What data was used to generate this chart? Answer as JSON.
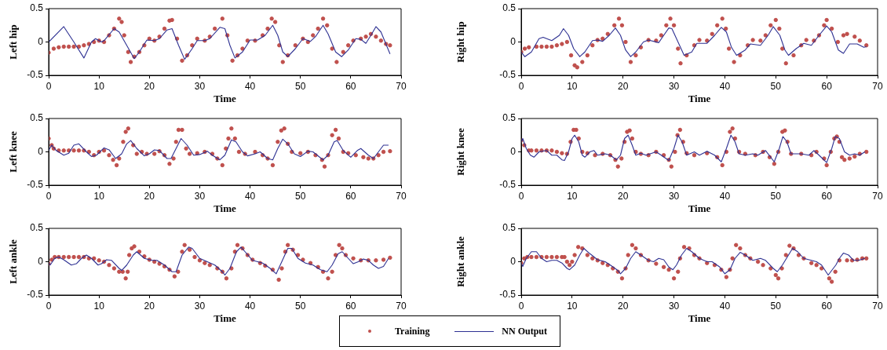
{
  "chart_data": [
    {
      "type": "line",
      "ylabel": "Left hip",
      "xlabel": "Time",
      "xlim": [
        0,
        70
      ],
      "xticks": [
        0,
        10,
        20,
        30,
        40,
        50,
        60,
        70
      ],
      "ylim": [
        -0.5,
        0.5
      ],
      "yticks": [
        -0.5,
        0,
        0.5
      ],
      "series": [
        {
          "type": "scatter",
          "marker": "circle",
          "color": "#c0504d",
          "x": [
            0,
            1,
            2,
            3,
            4,
            5,
            6,
            7,
            8,
            9,
            10,
            11,
            12,
            13,
            14,
            14.5,
            15,
            15.8,
            16.3,
            17,
            18,
            19,
            20,
            21,
            22,
            23,
            24,
            24.5,
            25.5,
            26.5,
            27.5,
            28.5,
            29.5,
            31,
            32,
            33,
            34.5,
            35.5,
            36.5,
            37.5,
            38.5,
            39.5,
            41,
            42.5,
            43.5,
            44.3,
            45,
            45.8,
            46.5,
            47.5,
            49,
            50.5,
            51.5,
            52.5,
            53.5,
            54.5,
            55.3,
            56.3,
            57.2,
            58.5,
            59.5,
            60.5,
            62,
            63,
            64,
            65,
            66,
            67,
            67.8
          ],
          "values": [
            -0.16,
            -0.1,
            -0.08,
            -0.07,
            -0.07,
            -0.07,
            -0.07,
            -0.05,
            -0.03,
            0,
            0.02,
            0,
            0.1,
            0.2,
            0.35,
            0.3,
            0.1,
            -0.15,
            -0.3,
            -0.22,
            -0.15,
            -0.05,
            0.05,
            0.02,
            0.08,
            0.2,
            0.32,
            0.33,
            0.05,
            -0.28,
            -0.2,
            -0.05,
            0.05,
            0.02,
            0.08,
            0.2,
            0.35,
            0.1,
            -0.28,
            -0.2,
            -0.1,
            0.02,
            0.02,
            0.1,
            0.2,
            0.35,
            0.3,
            -0.05,
            -0.3,
            -0.2,
            -0.05,
            0.05,
            0,
            0.1,
            0.2,
            0.35,
            0.25,
            -0.1,
            -0.3,
            -0.15,
            -0.05,
            0.02,
            0.05,
            0.08,
            0.12,
            0.08,
            0.02,
            -0.03,
            -0.05
          ]
        },
        {
          "type": "line",
          "color": "#2e3192",
          "x": [
            0,
            3,
            5,
            7,
            8.5,
            9.3,
            10.5,
            11,
            13,
            14,
            15.5,
            17,
            18,
            19.5,
            21,
            22,
            23.5,
            24.5,
            25.8,
            27,
            28.5,
            29.5,
            31,
            32,
            34,
            35,
            36,
            37,
            38.5,
            40,
            41.5,
            43,
            44.5,
            45.5,
            46.5,
            47.5,
            49,
            50.5,
            52,
            53,
            54.5,
            55.5,
            57,
            58.2,
            59.5,
            61,
            62,
            63,
            64,
            65,
            66,
            67.8
          ],
          "values": [
            0,
            0.23,
            0,
            -0.24,
            0,
            0.05,
            0,
            0.02,
            0.2,
            0.15,
            -0.05,
            -0.25,
            -0.15,
            0.03,
            0.02,
            0.05,
            0.18,
            0.2,
            -0.05,
            -0.26,
            -0.1,
            0.02,
            0.02,
            0.05,
            0.22,
            0.2,
            -0.05,
            -0.24,
            -0.15,
            0.03,
            0.03,
            0.1,
            0.25,
            0.1,
            -0.15,
            -0.22,
            -0.1,
            0.05,
            0.01,
            0.08,
            0.25,
            0.12,
            -0.15,
            -0.22,
            -0.12,
            0.05,
            0.04,
            -0.02,
            0.1,
            0.23,
            0.15,
            -0.18
          ]
        }
      ]
    },
    {
      "type": "line",
      "ylabel": "Right hip",
      "xlabel": "Time",
      "xlim": [
        0,
        70
      ],
      "xticks": [
        0,
        10,
        20,
        30,
        40,
        50,
        60,
        70
      ],
      "ylim": [
        -0.5,
        0.5
      ],
      "yticks": [
        -0.5,
        0,
        0.5
      ],
      "series": [
        {
          "type": "scatter",
          "marker": "circle",
          "color": "#c0504d",
          "x": [
            0,
            0.7,
            1.5,
            3,
            4,
            5,
            6,
            7,
            8,
            9,
            9.8,
            10.5,
            11,
            12,
            13,
            14,
            15,
            16,
            17,
            18.3,
            19.2,
            19.8,
            20.5,
            21.5,
            22.5,
            23.5,
            25,
            26.5,
            27.5,
            28.5,
            29.3,
            30,
            30.8,
            31.3,
            32.5,
            34,
            35,
            36.5,
            37.5,
            38.5,
            39.5,
            40.2,
            40.8,
            41.8,
            43,
            44.5,
            45.5,
            47,
            48,
            49,
            50,
            50.7,
            51.3,
            52,
            53.5,
            55,
            56,
            57.5,
            58.5,
            59.5,
            60,
            61,
            62.2,
            63.3,
            64,
            65.5,
            66.5,
            67.8
          ],
          "values": [
            -0.15,
            -0.1,
            -0.08,
            -0.07,
            -0.07,
            -0.07,
            -0.07,
            -0.05,
            -0.03,
            0,
            -0.2,
            -0.35,
            -0.38,
            -0.3,
            -0.2,
            -0.05,
            0.03,
            0.05,
            0.12,
            0.25,
            0.35,
            0.25,
            0,
            -0.3,
            -0.2,
            -0.08,
            0.03,
            0.02,
            0.1,
            0.25,
            0.35,
            0.25,
            -0.1,
            -0.32,
            -0.2,
            -0.05,
            0.03,
            0.02,
            0.12,
            0.25,
            0.35,
            0.2,
            -0.1,
            -0.3,
            -0.2,
            -0.05,
            0.03,
            0.02,
            0.1,
            0.25,
            0.33,
            0.2,
            -0.1,
            -0.32,
            -0.2,
            -0.05,
            0.03,
            0.02,
            0.1,
            0.25,
            0.33,
            0.2,
            0,
            0.1,
            0.12,
            0.08,
            0.02,
            -0.05
          ]
        },
        {
          "type": "line",
          "color": "#2e3192",
          "x": [
            0,
            0.7,
            2,
            3.5,
            4.3,
            6,
            7.5,
            8.3,
            9.3,
            10.3,
            11.5,
            12.5,
            14,
            15,
            16,
            17.3,
            18.5,
            19.5,
            20.5,
            21.5,
            22.5,
            24,
            25,
            27,
            28,
            29,
            29.6,
            30.8,
            32,
            33.5,
            34.5,
            36.5,
            38,
            39.3,
            40.3,
            41.3,
            42.3,
            44,
            45,
            47,
            48.5,
            49.5,
            50.8,
            51.8,
            52.5,
            54,
            55.5,
            57,
            58.5,
            60,
            61,
            62.3,
            63.3,
            64.5,
            66,
            67.3,
            67.8
          ],
          "values": [
            -0.15,
            -0.22,
            -0.15,
            0.05,
            0.07,
            0.02,
            0.1,
            0.2,
            0.1,
            -0.1,
            -0.22,
            -0.15,
            0.02,
            0.03,
            0.01,
            0.1,
            0.21,
            0.1,
            -0.12,
            -0.22,
            -0.15,
            0,
            0.03,
            -0.01,
            0.1,
            0.21,
            0.2,
            0,
            -0.2,
            -0.15,
            -0.02,
            -0.02,
            0.1,
            0.22,
            0.15,
            -0.08,
            -0.2,
            -0.12,
            -0.03,
            -0.05,
            0.1,
            0.23,
            0.1,
            -0.12,
            -0.2,
            -0.1,
            -0.02,
            -0.05,
            0.1,
            0.24,
            0.15,
            -0.12,
            -0.17,
            -0.03,
            -0.03,
            -0.08,
            -0.07
          ]
        }
      ]
    },
    {
      "type": "line",
      "ylabel": "Left knee",
      "xlabel": "Time",
      "xlim": [
        0,
        70
      ],
      "xticks": [
        0,
        10,
        20,
        30,
        40,
        50,
        60,
        70
      ],
      "ylim": [
        -0.5,
        0.5
      ],
      "yticks": [
        -0.5,
        0,
        0.5
      ],
      "series": [
        {
          "type": "scatter",
          "marker": "circle",
          "color": "#c0504d",
          "x": [
            0,
            0.6,
            1,
            2,
            3,
            4,
            5,
            6,
            7,
            8,
            9,
            10,
            11,
            12,
            12.8,
            13.5,
            14,
            14.8,
            15.3,
            15.8,
            16.8,
            17.5,
            18.5,
            19.5,
            21,
            22,
            23,
            24,
            24.8,
            25.3,
            25.8,
            26.5,
            27.3,
            28,
            29.5,
            31,
            32.5,
            33.5,
            34.5,
            35.2,
            35.7,
            36.3,
            37,
            37.8,
            39,
            41,
            42.5,
            43.5,
            44.5,
            45.5,
            46.2,
            46.8,
            47.5,
            48.3,
            50,
            51.5,
            53,
            54.3,
            54.8,
            55.5,
            56.3,
            57,
            57.6,
            58.5,
            59.5,
            61,
            62.5,
            63.5,
            64.5,
            65.5,
            66.5,
            67.8
          ],
          "values": [
            0.2,
            0.1,
            0.05,
            0.02,
            0.02,
            0.02,
            0.02,
            0.02,
            0.02,
            0,
            -0.05,
            0,
            0.02,
            -0.05,
            -0.12,
            -0.2,
            -0.1,
            0.15,
            0.3,
            0.35,
            0.1,
            -0.03,
            0,
            -0.03,
            -0.03,
            0.01,
            -0.05,
            -0.18,
            -0.1,
            0.15,
            0.33,
            0.33,
            0.05,
            -0.03,
            -0.02,
            0,
            -0.03,
            -0.1,
            -0.2,
            0.05,
            0.2,
            0.35,
            0.2,
            0,
            -0.03,
            0,
            -0.05,
            -0.1,
            -0.2,
            0.15,
            0.32,
            0.35,
            0.12,
            0,
            -0.02,
            0,
            -0.05,
            -0.12,
            -0.22,
            -0.05,
            0.25,
            0.33,
            0.2,
            0,
            -0.02,
            -0.05,
            -0.08,
            -0.1,
            -0.1,
            -0.05,
            0,
            0.01
          ]
        },
        {
          "type": "line",
          "color": "#2e3192",
          "x": [
            0,
            0.6,
            1.5,
            3,
            4,
            5,
            6,
            7.5,
            8.5,
            9.5,
            11,
            12,
            13.3,
            14.5,
            15.5,
            16.3,
            17.5,
            19,
            20,
            21,
            22,
            23.5,
            24.3,
            25.3,
            26.3,
            27.5,
            28.8,
            30,
            31.5,
            32.5,
            34,
            35,
            36.3,
            37.2,
            38.5,
            39.5,
            41,
            42,
            43.5,
            44.5,
            45.5,
            46.5,
            47.5,
            48.8,
            50,
            51.5,
            52.5,
            54.5,
            55.5,
            56.7,
            57.3,
            58.5,
            60,
            61.3,
            62,
            63.5,
            64.5,
            65.5,
            66.5,
            67.5
          ],
          "values": [
            0.02,
            0.1,
            0.02,
            -0.05,
            -0.02,
            0.1,
            0.12,
            0,
            -0.07,
            -0.05,
            0.06,
            0.03,
            -0.1,
            -0.03,
            0.12,
            0.17,
            0.05,
            -0.06,
            -0.03,
            0.03,
            0.02,
            -0.1,
            -0.1,
            0.05,
            0.2,
            0.1,
            -0.05,
            -0.04,
            0.01,
            -0.05,
            -0.12,
            -0.05,
            0.18,
            0.15,
            0,
            -0.06,
            -0.03,
            0,
            -0.1,
            -0.12,
            0.05,
            0.19,
            0.12,
            -0.03,
            -0.07,
            0.01,
            0,
            -0.12,
            -0.05,
            0.15,
            0.17,
            0.02,
            -0.08,
            0.02,
            0.05,
            -0.05,
            -0.1,
            0,
            0.1,
            0.1
          ]
        }
      ]
    },
    {
      "type": "line",
      "ylabel": "Right knee",
      "xlabel": "Time",
      "xlim": [
        0,
        70
      ],
      "xticks": [
        0,
        10,
        20,
        30,
        40,
        50,
        60,
        70
      ],
      "ylim": [
        -0.5,
        0.5
      ],
      "yticks": [
        -0.5,
        0,
        0.5
      ],
      "series": [
        {
          "type": "scatter",
          "marker": "circle",
          "color": "#c0504d",
          "x": [
            0,
            0.6,
            1.5,
            2,
            3,
            4,
            5,
            6,
            7,
            8,
            9,
            9.7,
            10.3,
            10.8,
            11.3,
            12,
            13,
            14.5,
            16,
            17.5,
            18.5,
            19,
            19.7,
            20.3,
            20.8,
            21.3,
            21.8,
            22.5,
            23.5,
            25,
            26.5,
            28,
            29,
            29.5,
            30.2,
            30.7,
            31.2,
            31.8,
            32.5,
            34,
            36.5,
            38.5,
            39.5,
            40.3,
            41,
            41.5,
            42,
            42.8,
            44,
            46,
            47.5,
            48.8,
            49.7,
            50.5,
            51.3,
            51.8,
            52.3,
            53,
            55,
            57,
            58,
            59.5,
            60,
            60.8,
            61.5,
            62,
            62.5,
            63,
            63.5,
            64.5,
            65.5,
            66.5,
            67.8
          ],
          "values": [
            0.17,
            0.1,
            0.02,
            0.02,
            0.02,
            0.02,
            0.02,
            0.02,
            0,
            -0.02,
            -0.03,
            0.15,
            0.33,
            0.33,
            0.2,
            0,
            -0.02,
            -0.05,
            -0.03,
            -0.05,
            -0.12,
            -0.22,
            -0.1,
            0.15,
            0.3,
            0.32,
            0.2,
            0,
            -0.03,
            -0.05,
            0,
            -0.05,
            -0.12,
            -0.22,
            0,
            0.25,
            0.33,
            0.15,
            -0.02,
            -0.05,
            -0.02,
            -0.08,
            -0.2,
            0,
            0.3,
            0.35,
            0.2,
            0,
            -0.03,
            -0.05,
            0,
            -0.08,
            -0.18,
            0,
            0.3,
            0.32,
            0.15,
            -0.03,
            -0.03,
            -0.05,
            0,
            -0.1,
            -0.2,
            0,
            0.2,
            0.23,
            0.15,
            -0.08,
            -0.12,
            -0.1,
            -0.07,
            -0.03,
            0
          ]
        },
        {
          "type": "line",
          "color": "#2e3192",
          "x": [
            0,
            0.3,
            1,
            1.8,
            2.5,
            3.5,
            5,
            6,
            7,
            8,
            8.5,
            9.3,
            10,
            10.5,
            11.3,
            12,
            12.5,
            13.5,
            14.3,
            15,
            16.5,
            17.5,
            18.7,
            19.5,
            20.3,
            21,
            21.8,
            22.5,
            23.5,
            24.5,
            26.5,
            27.5,
            29,
            30,
            30.8,
            31.6,
            32.5,
            34,
            35,
            36.5,
            38,
            39.3,
            40.3,
            41.2,
            42,
            42.8,
            44,
            45.5,
            46.5,
            48,
            49.7,
            50.7,
            51.4,
            52.2,
            53,
            55,
            56.5,
            57.5,
            58.5,
            60,
            61,
            61.7,
            62.5,
            63.5,
            64.5,
            65.5,
            66.5,
            67.5
          ],
          "values": [
            0.15,
            0.2,
            0.05,
            -0.05,
            -0.08,
            0,
            0.02,
            -0.05,
            -0.05,
            -0.12,
            -0.13,
            0,
            0.2,
            0.25,
            0.15,
            -0.05,
            -0.08,
            0,
            0.02,
            -0.05,
            -0.03,
            -0.05,
            -0.12,
            -0.05,
            0.2,
            0.25,
            0.1,
            -0.05,
            -0.02,
            -0.05,
            0,
            -0.05,
            -0.13,
            0.05,
            0.25,
            0.15,
            -0.05,
            0,
            -0.05,
            0.01,
            -0.05,
            -0.15,
            0.05,
            0.25,
            0.15,
            -0.03,
            -0.05,
            -0.03,
            -0.05,
            0.02,
            -0.15,
            0.05,
            0.23,
            0.15,
            -0.03,
            -0.03,
            -0.05,
            0.02,
            -0.05,
            -0.16,
            0.05,
            0.23,
            0.2,
            0,
            -0.05,
            -0.03,
            -0.05,
            0
          ]
        }
      ]
    },
    {
      "type": "line",
      "ylabel": "Left ankle",
      "xlabel": "Time",
      "xlim": [
        0,
        70
      ],
      "xticks": [
        0,
        10,
        20,
        30,
        40,
        50,
        60,
        70
      ],
      "ylim": [
        -0.5,
        0.5
      ],
      "yticks": [
        -0.5,
        0,
        0.5
      ],
      "legend": "bottom",
      "series": [
        {
          "name": "Training",
          "type": "scatter",
          "marker": "circle",
          "color": "#c0504d",
          "x": [
            0,
            0.6,
            1.2,
            2,
            3,
            4,
            5,
            6,
            7,
            8,
            9,
            10,
            11,
            12,
            13,
            14,
            14.7,
            15.3,
            15.7,
            16,
            16.5,
            17,
            18,
            19,
            20,
            21,
            22,
            23,
            24,
            25,
            25.7,
            26.5,
            27,
            28,
            29,
            30,
            31,
            32,
            33.5,
            34.5,
            35.3,
            36.3,
            37,
            37.5,
            38.5,
            39.5,
            40.5,
            42,
            43,
            44.5,
            45.7,
            46.3,
            47,
            47.5,
            48.5,
            49.5,
            50.5,
            52,
            53.5,
            54.5,
            55.5,
            56.3,
            57,
            57.7,
            58.3,
            59,
            60.5,
            62,
            63.5,
            65,
            66.5,
            67.8
          ],
          "values": [
            -0.03,
            0.03,
            0.07,
            0.07,
            0.07,
            0.07,
            0.07,
            0.07,
            0.07,
            0.05,
            0.05,
            0.02,
            0,
            -0.05,
            -0.1,
            -0.15,
            -0.15,
            -0.25,
            -0.15,
            0.1,
            0.2,
            0.23,
            0.15,
            0.08,
            0.03,
            0,
            -0.03,
            -0.07,
            -0.12,
            -0.22,
            -0.15,
            0.15,
            0.25,
            0.18,
            0.07,
            0.02,
            -0.02,
            -0.05,
            -0.1,
            -0.15,
            -0.25,
            -0.1,
            0.15,
            0.25,
            0.2,
            0.1,
            0.03,
            -0.02,
            -0.06,
            -0.12,
            -0.27,
            -0.1,
            0.15,
            0.25,
            0.18,
            0.1,
            0.03,
            -0.02,
            -0.08,
            -0.15,
            -0.25,
            -0.15,
            0.1,
            0.25,
            0.2,
            0.1,
            0.05,
            0.02,
            0.02,
            0.02,
            0.03,
            0.06
          ]
        },
        {
          "name": "NN Output",
          "type": "line",
          "color": "#2e3192",
          "x": [
            0,
            0.3,
            1.2,
            2,
            3,
            4.5,
            5.5,
            6.5,
            7.5,
            8.5,
            9.8,
            10.5,
            11.5,
            12.5,
            14,
            14.5,
            15.5,
            16.8,
            17.5,
            19,
            20.5,
            21.5,
            23,
            24.5,
            25.3,
            26.5,
            27.8,
            28.5,
            30,
            31.5,
            33,
            34.5,
            35,
            36,
            37.3,
            38.2,
            39,
            40.5,
            42.5,
            44,
            45.2,
            46.3,
            47.5,
            48.3,
            49.5,
            51,
            52.5,
            54,
            55.3,
            56.3,
            57.5,
            58.3,
            59.5,
            60.5,
            61.5,
            62.5,
            63.5,
            64.5,
            65.5,
            66.5,
            67.5
          ],
          "values": [
            -0.02,
            -0.05,
            0.05,
            0.07,
            0.03,
            -0.05,
            -0.03,
            0.05,
            0.1,
            0.05,
            -0.05,
            -0.03,
            0.03,
            0.02,
            -0.1,
            -0.13,
            -0.05,
            0.1,
            0.15,
            0.05,
            0.02,
            0.02,
            -0.05,
            -0.15,
            -0.15,
            0.1,
            0.22,
            0.2,
            0.05,
            0,
            -0.05,
            -0.15,
            -0.2,
            -0.1,
            0.15,
            0.22,
            0.15,
            0.02,
            -0.02,
            -0.1,
            -0.18,
            0,
            0.2,
            0.2,
            0.05,
            -0.02,
            -0.05,
            -0.12,
            -0.15,
            -0.05,
            0.12,
            0.15,
            0.05,
            -0.03,
            0,
            0.04,
            0.02,
            -0.05,
            -0.1,
            -0.07,
            0.05
          ]
        }
      ]
    },
    {
      "type": "line",
      "ylabel": "Right ankle",
      "xlabel": "Time",
      "xlim": [
        0,
        70
      ],
      "xticks": [
        0,
        10,
        20,
        30,
        40,
        50,
        60,
        70
      ],
      "ylim": [
        -0.5,
        0.5
      ],
      "yticks": [
        -0.5,
        0,
        0.5
      ],
      "series": [
        {
          "type": "scatter",
          "marker": "circle",
          "color": "#c0504d",
          "x": [
            0,
            0.6,
            1.2,
            2,
            3,
            4,
            5,
            6,
            7,
            8,
            8.5,
            9,
            9.5,
            10,
            10.5,
            11.2,
            12,
            13,
            14,
            15,
            16,
            17,
            18,
            19,
            19.8,
            20.5,
            21,
            21.8,
            22.5,
            23.5,
            25,
            26.5,
            28,
            29,
            30,
            30.8,
            31.2,
            32,
            33,
            34,
            35,
            36.5,
            38,
            39.3,
            40.3,
            41,
            41.5,
            42.2,
            43,
            44,
            45,
            46.5,
            47.5,
            49,
            50,
            50.5,
            51.2,
            52,
            52.7,
            53.5,
            54.5,
            55.5,
            57,
            58,
            59,
            60.5,
            61,
            61.7,
            62.5,
            64,
            65,
            66,
            67,
            67.8
          ],
          "values": [
            -0.02,
            0.05,
            0.07,
            0.07,
            0.07,
            0.07,
            0.07,
            0.07,
            0.07,
            0.07,
            0.07,
            0,
            -0.05,
            0,
            0.1,
            0.22,
            0.2,
            0.1,
            0.05,
            0.02,
            -0.02,
            -0.05,
            -0.1,
            -0.15,
            -0.25,
            -0.1,
            0.1,
            0.25,
            0.2,
            0.1,
            0.02,
            -0.03,
            -0.08,
            -0.12,
            -0.25,
            -0.15,
            0.05,
            0.22,
            0.2,
            0.1,
            0.05,
            -0.02,
            -0.05,
            -0.12,
            -0.23,
            -0.12,
            0.05,
            0.25,
            0.2,
            0.1,
            0.05,
            0,
            -0.05,
            -0.1,
            -0.2,
            -0.25,
            -0.1,
            0.1,
            0.24,
            0.2,
            0.1,
            0.05,
            -0.02,
            -0.05,
            -0.1,
            -0.25,
            -0.3,
            -0.15,
            0.02,
            0.02,
            0.02,
            0.03,
            0.05,
            0.05
          ]
        },
        {
          "type": "line",
          "color": "#2e3192",
          "x": [
            0,
            0.3,
            1,
            2,
            3,
            4,
            5,
            6,
            7,
            8,
            9,
            9.5,
            10.5,
            11.5,
            12.3,
            13.5,
            15,
            16.5,
            17.5,
            18.8,
            19.5,
            20.5,
            21.5,
            22.5,
            23.5,
            25,
            26,
            27,
            28,
            29,
            29.8,
            30.5,
            31.5,
            32.5,
            33.5,
            35,
            36.5,
            37.5,
            39,
            40,
            41,
            42,
            43,
            44,
            45.5,
            47,
            48,
            49.5,
            50.3,
            51.3,
            52.5,
            53.3,
            54.3,
            55.5,
            57,
            58,
            59,
            60.3,
            61.8,
            62.5,
            63.3,
            64.3,
            65.3,
            66.3,
            67.5
          ],
          "values": [
            -0.02,
            -0.07,
            0.05,
            0.15,
            0.15,
            0.05,
            0,
            0.02,
            0.02,
            -0.02,
            -0.1,
            -0.12,
            -0.05,
            0.1,
            0.2,
            0.12,
            0.03,
            0,
            -0.05,
            -0.12,
            -0.18,
            -0.1,
            0.05,
            0.15,
            0.1,
            0.02,
            0,
            0.05,
            0.03,
            -0.08,
            -0.12,
            -0.05,
            0.1,
            0.2,
            0.15,
            0.05,
            0,
            0,
            -0.08,
            -0.18,
            -0.12,
            0.05,
            0.14,
            0.1,
            0.02,
            0.05,
            0.02,
            -0.1,
            -0.15,
            -0.05,
            0.1,
            0.2,
            0.15,
            0.05,
            0.02,
            0,
            -0.05,
            -0.2,
            -0.05,
            0.05,
            0.13,
            0.1,
            0.02,
            0.02,
            0.05
          ]
        }
      ]
    }
  ]
}
